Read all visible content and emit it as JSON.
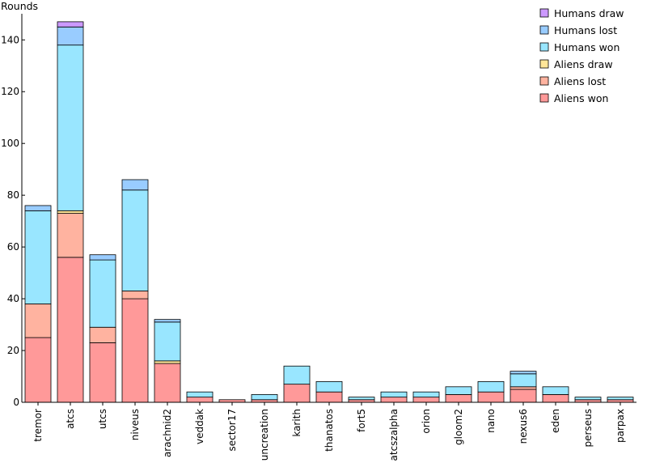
{
  "chart_data": {
    "type": "bar",
    "stacked": true,
    "title": "",
    "xlabel": "",
    "ylabel": "Rounds",
    "ylim": [
      0,
      150
    ],
    "yticks": [
      0,
      20,
      40,
      60,
      80,
      100,
      120,
      140
    ],
    "grid": false,
    "legend_position": "top-right",
    "categories": [
      "tremor",
      "atcs",
      "utcs",
      "niveus",
      "arachnid2",
      "veddak",
      "sector17",
      "uncreation",
      "karith",
      "thanatos",
      "fort5",
      "atcszalpha",
      "orion",
      "gloom2",
      "nano",
      "nexus6",
      "eden",
      "perseus",
      "parpax"
    ],
    "series": [
      {
        "name": "Aliens won",
        "color": "#ff9999",
        "values": [
          25,
          56,
          23,
          40,
          15,
          2,
          1,
          1,
          7,
          4,
          1,
          2,
          2,
          3,
          4,
          5,
          3,
          1,
          1
        ]
      },
      {
        "name": "Aliens lost",
        "color": "#ffb3a0",
        "values": [
          13,
          17,
          6,
          3,
          0,
          0,
          0,
          0,
          0,
          0,
          0,
          0,
          0,
          0,
          0,
          1,
          0,
          0,
          0
        ]
      },
      {
        "name": "Aliens draw",
        "color": "#ffe699",
        "values": [
          0,
          1,
          0,
          0,
          1,
          0,
          0,
          0,
          0,
          0,
          0,
          0,
          0,
          0,
          0,
          0,
          0,
          0,
          0
        ]
      },
      {
        "name": "Humans won",
        "color": "#99e6ff",
        "values": [
          36,
          64,
          26,
          39,
          15,
          2,
          0,
          2,
          7,
          4,
          1,
          2,
          2,
          3,
          4,
          5,
          3,
          1,
          1
        ]
      },
      {
        "name": "Humans lost",
        "color": "#99ccff",
        "values": [
          2,
          7,
          2,
          4,
          1,
          0,
          0,
          0,
          0,
          0,
          0,
          0,
          0,
          0,
          0,
          1,
          0,
          0,
          0
        ]
      },
      {
        "name": "Humans draw",
        "color": "#cc99ff",
        "values": [
          0,
          2,
          0,
          0,
          0,
          0,
          0,
          0,
          0,
          0,
          0,
          0,
          0,
          0,
          0,
          0,
          0,
          0,
          0
        ]
      }
    ]
  }
}
